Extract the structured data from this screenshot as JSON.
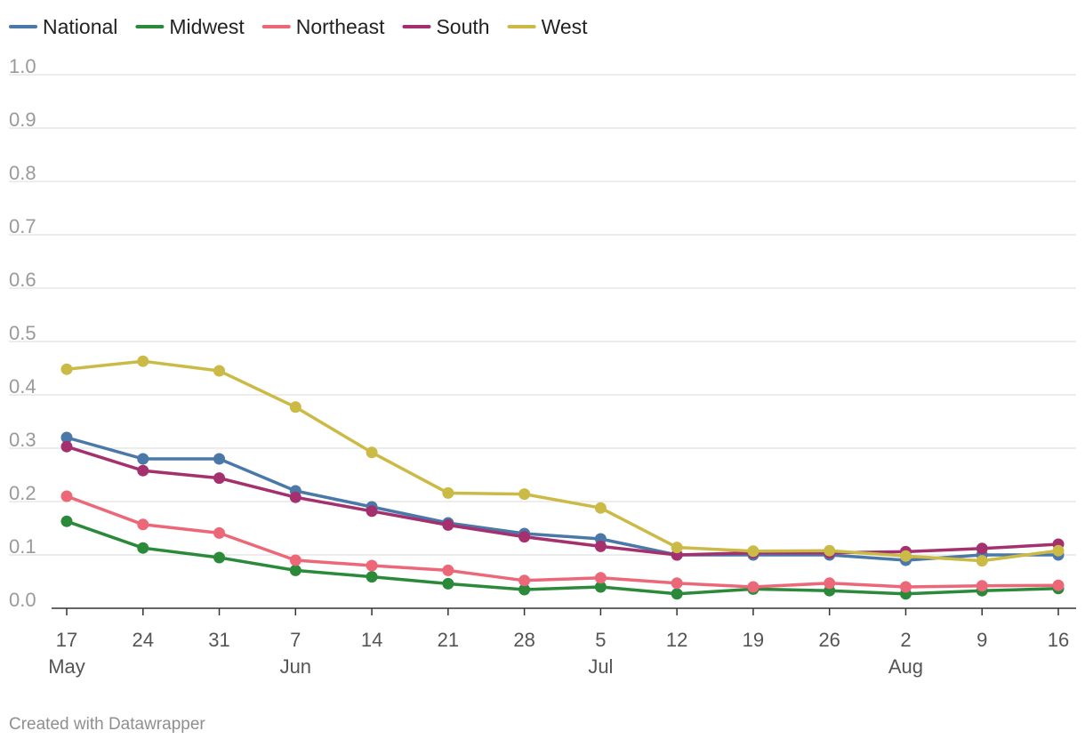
{
  "chart_data": {
    "type": "line",
    "title": "",
    "xlabel": "",
    "ylabel": "",
    "ylim": [
      0,
      1.0
    ],
    "y_ticks": [
      "0.0",
      "0.1",
      "0.2",
      "0.3",
      "0.4",
      "0.5",
      "0.6",
      "0.7",
      "0.8",
      "0.9",
      "1.0"
    ],
    "grid": true,
    "legend_position": "top-left",
    "x": [
      "2020-05-17",
      "2020-05-24",
      "2020-05-31",
      "2020-06-07",
      "2020-06-14",
      "2020-06-21",
      "2020-06-28",
      "2020-07-05",
      "2020-07-12",
      "2020-07-19",
      "2020-07-26",
      "2020-08-02",
      "2020-08-09",
      "2020-08-16"
    ],
    "x_tick_labels": [
      {
        "day": "17",
        "month": "May"
      },
      {
        "day": "24",
        "month": ""
      },
      {
        "day": "31",
        "month": ""
      },
      {
        "day": "7",
        "month": "Jun"
      },
      {
        "day": "14",
        "month": ""
      },
      {
        "day": "21",
        "month": ""
      },
      {
        "day": "28",
        "month": ""
      },
      {
        "day": "5",
        "month": "Jul"
      },
      {
        "day": "12",
        "month": ""
      },
      {
        "day": "19",
        "month": ""
      },
      {
        "day": "26",
        "month": ""
      },
      {
        "day": "2",
        "month": "Aug"
      },
      {
        "day": "9",
        "month": ""
      },
      {
        "day": "16",
        "month": ""
      }
    ],
    "series": [
      {
        "name": "National",
        "color": "#4a78a8",
        "values": [
          0.32,
          0.28,
          0.28,
          0.22,
          0.19,
          0.16,
          0.14,
          0.13,
          0.1,
          0.1,
          0.1,
          0.09,
          0.1,
          0.1
        ]
      },
      {
        "name": "Midwest",
        "color": "#2a8a3a",
        "values": [
          0.163,
          0.113,
          0.095,
          0.071,
          0.059,
          0.046,
          0.035,
          0.04,
          0.027,
          0.036,
          0.033,
          0.027,
          0.033,
          0.037
        ]
      },
      {
        "name": "Northeast",
        "color": "#ec6878",
        "values": [
          0.21,
          0.157,
          0.141,
          0.09,
          0.08,
          0.071,
          0.052,
          0.057,
          0.047,
          0.04,
          0.047,
          0.04,
          0.042,
          0.043
        ]
      },
      {
        "name": "South",
        "color": "#a5306e",
        "values": [
          0.303,
          0.258,
          0.244,
          0.208,
          0.182,
          0.156,
          0.134,
          0.116,
          0.1,
          0.104,
          0.104,
          0.106,
          0.112,
          0.12
        ]
      },
      {
        "name": "West",
        "color": "#cbba45",
        "values": [
          0.448,
          0.463,
          0.445,
          0.377,
          0.292,
          0.216,
          0.214,
          0.188,
          0.114,
          0.107,
          0.108,
          0.098,
          0.089,
          0.108
        ]
      }
    ],
    "credit": "Created with Datawrapper"
  }
}
